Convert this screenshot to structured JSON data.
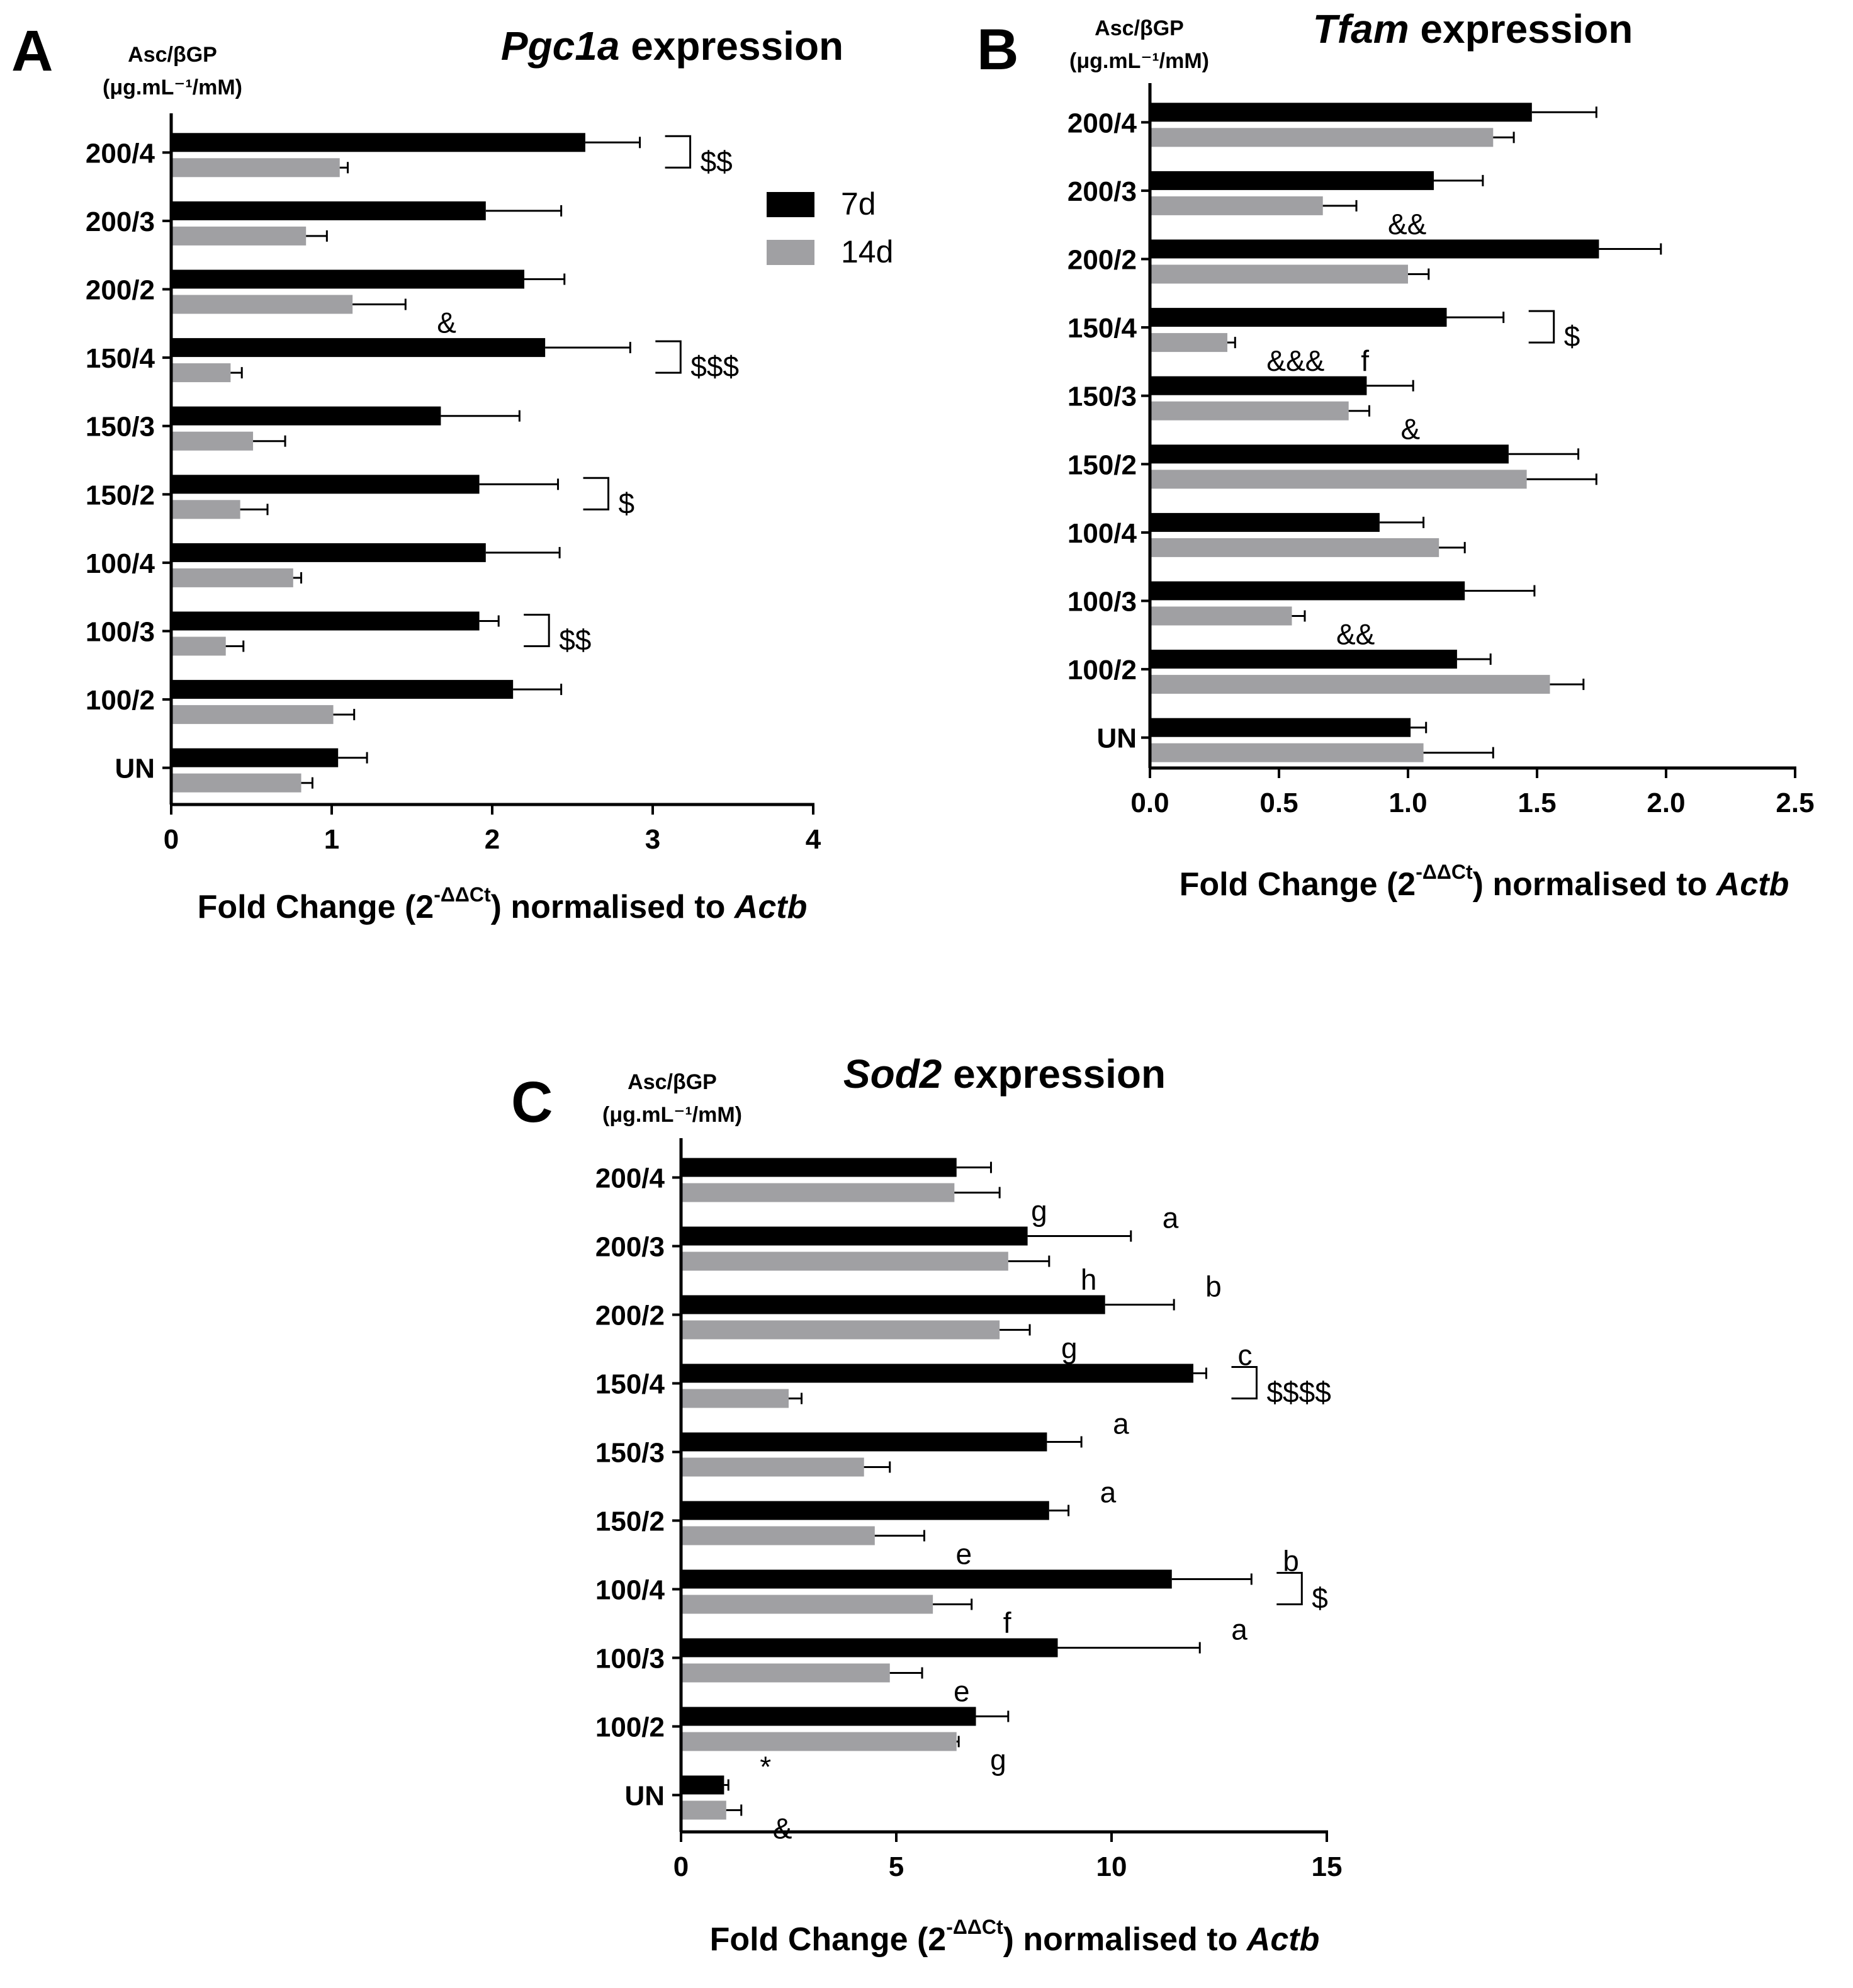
{
  "chart_data": [
    {
      "panel": "A",
      "type": "bar",
      "orientation": "horizontal",
      "title_gene": "Pgc1a",
      "title_rest": " expression",
      "ylabel_line1": "Asc/βGP",
      "ylabel_line2": "(μg.mL⁻¹/mM)",
      "xlabel_pre": "Fold Change (2",
      "xlabel_sup": "-ΔΔCt",
      "xlabel_mid": ") normalised to ",
      "xlabel_gene": "Actb",
      "categories": [
        "200/4",
        "200/3",
        "200/2",
        "150/4",
        "150/3",
        "150/2",
        "100/4",
        "100/3",
        "100/2",
        "UN"
      ],
      "xlim": [
        0,
        4
      ],
      "xticks": [
        "0",
        "1",
        "2",
        "3",
        "4"
      ],
      "series": [
        {
          "name": "7d",
          "color": "#000000",
          "values": [
            2.58,
            1.96,
            2.2,
            2.33,
            1.68,
            1.92,
            1.96,
            1.92,
            2.13,
            1.04
          ],
          "errors": [
            0.34,
            0.47,
            0.25,
            0.53,
            0.49,
            0.49,
            0.46,
            0.12,
            0.3,
            0.18
          ]
        },
        {
          "name": "14d",
          "color": "#a0a0a3",
          "values": [
            1.05,
            0.84,
            1.13,
            0.37,
            0.51,
            0.43,
            0.76,
            0.34,
            1.01,
            0.81
          ],
          "errors": [
            0.05,
            0.13,
            0.33,
            0.07,
            0.2,
            0.17,
            0.05,
            0.11,
            0.13,
            0.07
          ]
        }
      ],
      "annotations": [
        {
          "cat": "200/4",
          "text": "$$",
          "bracket": true
        },
        {
          "cat": "200/2",
          "series": "14d",
          "text": "&"
        },
        {
          "cat": "150/4",
          "text": "$$$",
          "bracket": true
        },
        {
          "cat": "150/2",
          "text": "$",
          "bracket": true
        },
        {
          "cat": "100/3",
          "text": "$$",
          "bracket": true
        }
      ],
      "legend": [
        {
          "label": "7d",
          "color": "#000000"
        },
        {
          "label": "14d",
          "color": "#a0a0a3"
        }
      ]
    },
    {
      "panel": "B",
      "type": "bar",
      "orientation": "horizontal",
      "title_gene": "Tfam",
      "title_rest": " expression",
      "ylabel_line1": "Asc/βGP",
      "ylabel_line2": "(μg.mL⁻¹/mM)",
      "xlabel_pre": "Fold Change (2",
      "xlabel_sup": "-ΔΔCt",
      "xlabel_mid": ") normalised to ",
      "xlabel_gene": "Actb",
      "categories": [
        "200/4",
        "200/3",
        "200/2",
        "150/4",
        "150/3",
        "150/2",
        "100/4",
        "100/3",
        "100/2",
        "UN"
      ],
      "xlim": [
        0,
        2.5
      ],
      "xticks": [
        "0.0",
        "0.5",
        "1.0",
        "1.5",
        "2.0",
        "2.5"
      ],
      "series": [
        {
          "name": "7d",
          "color": "#000000",
          "values": [
            1.48,
            1.1,
            1.74,
            1.15,
            0.84,
            1.39,
            0.89,
            1.22,
            1.19,
            1.01
          ],
          "errors": [
            0.25,
            0.19,
            0.24,
            0.22,
            0.18,
            0.27,
            0.17,
            0.27,
            0.13,
            0.06
          ]
        },
        {
          "name": "14d",
          "color": "#a0a0a3",
          "values": [
            1.33,
            0.67,
            1.0,
            0.3,
            0.77,
            1.46,
            1.12,
            0.55,
            1.55,
            1.06
          ],
          "errors": [
            0.08,
            0.13,
            0.08,
            0.03,
            0.08,
            0.27,
            0.1,
            0.05,
            0.13,
            0.27
          ]
        }
      ],
      "annotations": [
        {
          "cat": "200/3",
          "series": "14d",
          "text": "&&"
        },
        {
          "cat": "150/4",
          "series": "14d",
          "text": "&&&"
        },
        {
          "cat": "150/4",
          "series": "14d",
          "text": "f"
        },
        {
          "cat": "150/4",
          "text": "$",
          "bracket": true
        },
        {
          "cat": "150/3",
          "series": "14d",
          "text": "&"
        },
        {
          "cat": "100/3",
          "series": "14d",
          "text": "&&"
        }
      ]
    },
    {
      "panel": "C",
      "type": "bar",
      "orientation": "horizontal",
      "title_gene": "Sod2",
      "title_rest": " expression",
      "ylabel_line1": "Asc/βGP",
      "ylabel_line2": "(μg.mL⁻¹/mM)",
      "xlabel_pre": "Fold Change (2",
      "xlabel_sup": "-ΔΔCt",
      "xlabel_mid": ") normalised to ",
      "xlabel_gene": "Actb",
      "categories": [
        "200/4",
        "200/3",
        "200/2",
        "150/4",
        "150/3",
        "150/2",
        "100/4",
        "100/3",
        "100/2",
        "UN"
      ],
      "xlim": [
        0,
        15
      ],
      "xticks": [
        "0",
        "5",
        "10",
        "15"
      ],
      "series": [
        {
          "name": "7d",
          "color": "#000000",
          "values": [
            6.4,
            8.05,
            9.85,
            11.9,
            8.5,
            8.55,
            11.4,
            8.75,
            6.85,
            1.0
          ],
          "errors": [
            0.8,
            2.4,
            1.6,
            0.3,
            0.8,
            0.45,
            1.85,
            3.3,
            0.75,
            0.1
          ]
        },
        {
          "name": "14d",
          "color": "#a0a0a3",
          "values": [
            6.35,
            7.6,
            7.4,
            2.5,
            4.25,
            4.5,
            5.85,
            4.85,
            6.4,
            1.05
          ],
          "errors": [
            1.05,
            0.95,
            0.7,
            0.3,
            0.6,
            1.15,
            0.9,
            0.75,
            0.05,
            0.35
          ]
        }
      ],
      "annotations": [
        {
          "cat": "200/4",
          "series": "14d",
          "text": "g"
        },
        {
          "cat": "200/3",
          "series": "7d",
          "text": "a"
        },
        {
          "cat": "200/3",
          "series": "14d",
          "text": "h"
        },
        {
          "cat": "200/2",
          "series": "7d",
          "text": "b"
        },
        {
          "cat": "200/2",
          "series": "14d",
          "text": "g"
        },
        {
          "cat": "150/4",
          "series": "7d",
          "text": "c"
        },
        {
          "cat": "150/4",
          "text": "$$$$",
          "bracket": true
        },
        {
          "cat": "150/3",
          "series": "7d",
          "text": "a"
        },
        {
          "cat": "150/2",
          "series": "7d",
          "text": "a"
        },
        {
          "cat": "150/2",
          "series": "14d",
          "text": "e"
        },
        {
          "cat": "100/4",
          "series": "7d",
          "text": "b"
        },
        {
          "cat": "100/4",
          "series": "14d",
          "text": "f"
        },
        {
          "cat": "100/4",
          "text": "$",
          "bracket": true
        },
        {
          "cat": "100/3",
          "series": "7d",
          "text": "a"
        },
        {
          "cat": "100/3",
          "series": "14d",
          "text": "e"
        },
        {
          "cat": "100/2",
          "series": "14d",
          "text": "g"
        },
        {
          "cat": "UN",
          "series": "7d",
          "text": "*"
        },
        {
          "cat": "UN",
          "series": "14d",
          "text": "&"
        }
      ]
    }
  ]
}
